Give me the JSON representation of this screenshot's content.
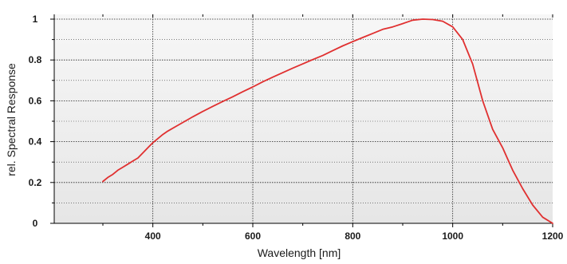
{
  "chart_data": {
    "type": "line",
    "title": "",
    "xlabel": "Wavelength [nm]",
    "ylabel": "rel. Spectral Response",
    "xlim": [
      200,
      1200
    ],
    "ylim": [
      0,
      1
    ],
    "xticks": [
      400,
      600,
      800,
      1000,
      1200
    ],
    "yticks": [
      0,
      0.2,
      0.4,
      0.6,
      0.8,
      1
    ],
    "ytick_labels": [
      "0",
      "0.2",
      "0.4",
      "0.6",
      "0.8",
      "1"
    ],
    "grid": true,
    "legend": "none",
    "series": [
      {
        "color": "#e03030",
        "x": [
          300,
          310,
          320,
          330,
          340,
          350,
          360,
          370,
          380,
          390,
          400,
          410,
          420,
          430,
          450,
          470,
          480,
          500,
          520,
          540,
          560,
          580,
          600,
          620,
          640,
          660,
          680,
          700,
          720,
          740,
          760,
          780,
          800,
          820,
          840,
          860,
          880,
          900,
          920,
          940,
          960,
          980,
          1000,
          1020,
          1040,
          1060,
          1080,
          1100,
          1120,
          1140,
          1160,
          1180,
          1200
        ],
        "y": [
          0.205,
          0.225,
          0.24,
          0.26,
          0.275,
          0.29,
          0.305,
          0.32,
          0.345,
          0.37,
          0.395,
          0.415,
          0.435,
          0.452,
          0.48,
          0.508,
          0.522,
          0.548,
          0.573,
          0.597,
          0.62,
          0.645,
          0.668,
          0.693,
          0.716,
          0.738,
          0.76,
          0.781,
          0.802,
          0.822,
          0.846,
          0.869,
          0.89,
          0.91,
          0.93,
          0.95,
          0.962,
          0.978,
          0.995,
          1.0,
          0.998,
          0.99,
          0.962,
          0.9,
          0.78,
          0.6,
          0.46,
          0.37,
          0.26,
          0.17,
          0.09,
          0.03,
          0.0
        ]
      }
    ]
  }
}
